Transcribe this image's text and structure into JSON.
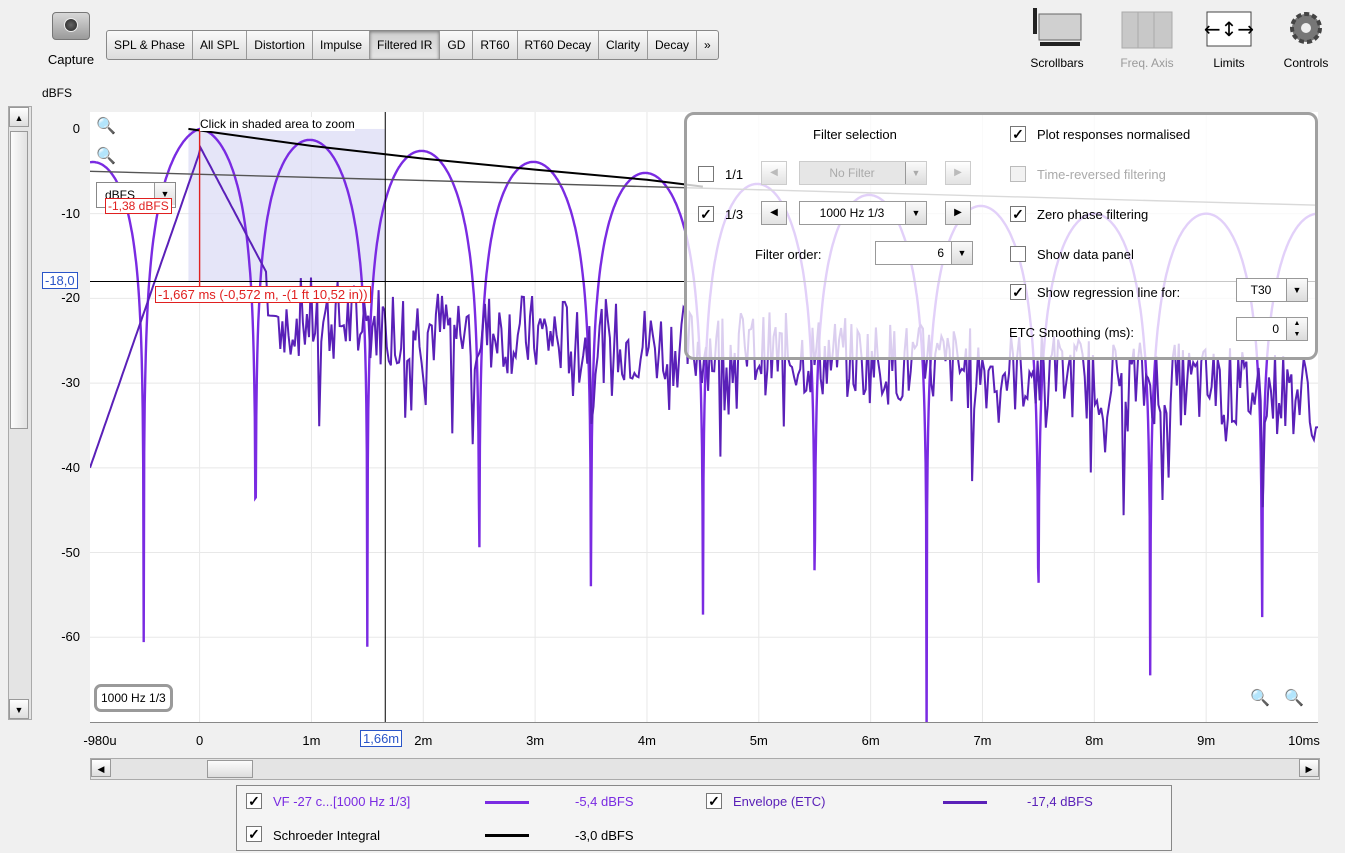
{
  "toolbar": {
    "capture_label": "Capture",
    "tabs": [
      "SPL & Phase",
      "All SPL",
      "Distortion",
      "Impulse",
      "Filtered IR",
      "GD",
      "RT60",
      "RT60 Decay",
      "Clarity",
      "Decay",
      "»"
    ],
    "active_tab": "Filtered IR",
    "right_tools": [
      {
        "label": "Scrollbars",
        "icon": "scrollbars-icon",
        "enabled": true
      },
      {
        "label": "Freq. Axis",
        "icon": "freq-axis-icon",
        "enabled": false
      },
      {
        "label": "Limits",
        "icon": "limits-icon",
        "enabled": true
      },
      {
        "label": "Controls",
        "icon": "gear-icon",
        "enabled": true
      }
    ]
  },
  "graph": {
    "y_unit": "dBFS",
    "y_ticks": [
      "0",
      "-10",
      "-20",
      "-30",
      "-40",
      "-50",
      "-60"
    ],
    "x_ticks": [
      "-980u",
      "0",
      "1m",
      "2m",
      "3m",
      "4m",
      "5m",
      "6m",
      "7m",
      "8m",
      "9m",
      "10ms"
    ],
    "zoom_hint": "Click in shaded area to zoom",
    "unit_select": "dBFS",
    "cursor_y": "-18,0",
    "cursor_x": "1,66m",
    "marker_readout": "-1,667 ms (-0,572 m, -(1 ft 10,52 in))",
    "peak_readout": "-1,38 dBFS",
    "filter_label": "1000 Hz 1/3"
  },
  "filter_panel": {
    "title": "Filter selection",
    "row1": {
      "checked": false,
      "label": "1/1",
      "value": "No Filter",
      "enabled": false
    },
    "row2": {
      "checked": true,
      "label": "1/3",
      "value": "1000 Hz 1/3",
      "enabled": true
    },
    "filter_order_label": "Filter order:",
    "filter_order_value": "6",
    "options": [
      {
        "label": "Plot responses normalised",
        "checked": true,
        "enabled": true
      },
      {
        "label": "Time-reversed filtering",
        "checked": false,
        "enabled": false
      },
      {
        "label": "Zero phase filtering",
        "checked": true,
        "enabled": true
      },
      {
        "label": "Show data panel",
        "checked": false,
        "enabled": true
      },
      {
        "label": "Show regression line for:",
        "checked": true,
        "enabled": true
      }
    ],
    "regression_value": "T30",
    "etc_smoothing_label": "ETC Smoothing (ms):",
    "etc_smoothing_value": "0"
  },
  "legend": [
    {
      "name": "VF -27 c...[1000 Hz 1/3]",
      "value": "-5,4 dBFS",
      "color": "#7a2be2",
      "checked": true
    },
    {
      "name": "Envelope (ETC)",
      "value": "-17,4 dBFS",
      "color": "#5a20b8",
      "checked": true
    },
    {
      "name": "Schroeder Integral",
      "value": "-3,0 dBFS",
      "color": "#000000",
      "checked": true
    }
  ],
  "chart_data": {
    "type": "line",
    "x_range_ms": [
      -0.98,
      10
    ],
    "ylim": [
      -70,
      2
    ],
    "series": [
      {
        "name": "VF -27 c...[1000 Hz 1/3]",
        "color": "#7a2be2",
        "values_ms_db": "oscillating filtered impulse, lobes at ~1 kHz, peak 0 dB near 0 ms decaying to about -10 dB"
      },
      {
        "name": "Envelope (ETC)",
        "color": "#5a20b8"
      },
      {
        "name": "Schroeder Integral",
        "color": "#000000",
        "points": [
          [
            -0.1,
            0
          ],
          [
            1,
            -2
          ],
          [
            2,
            -3.5
          ],
          [
            3,
            -4.8
          ],
          [
            4,
            -6
          ],
          [
            4.5,
            -6.8
          ]
        ]
      }
    ],
    "regression_points": [
      [
        -0.98,
        -5
      ],
      [
        10,
        -9
      ]
    ],
    "cursor": {
      "x_ms": 1.66,
      "y_db": -18.0
    }
  }
}
